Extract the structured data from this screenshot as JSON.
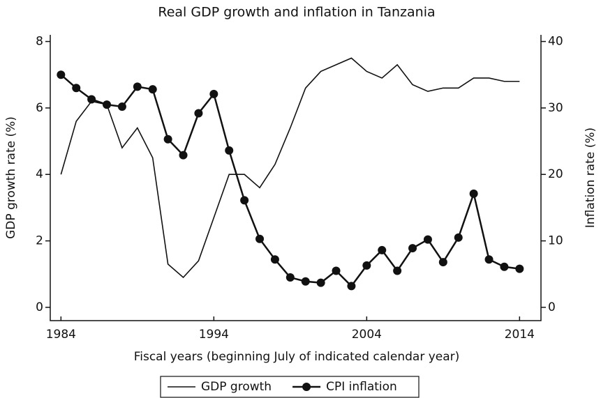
{
  "chart_data": {
    "type": "line",
    "title": "Real GDP growth and inflation in Tanzania",
    "x_label": "Fiscal years (beginning July of indicated calendar year)",
    "y_label": "GDP growth rate (%)",
    "y2_label": "Inflation rate (%)",
    "x": [
      1984,
      1985,
      1986,
      1987,
      1988,
      1989,
      1990,
      1991,
      1992,
      1993,
      1994,
      1995,
      1996,
      1997,
      1998,
      1999,
      2000,
      2001,
      2002,
      2003,
      2004,
      2005,
      2006,
      2007,
      2008,
      2009,
      2010,
      2011,
      2012,
      2013,
      2014
    ],
    "series": [
      {
        "name": "GDP growth",
        "color": "#111111",
        "markers": false,
        "values": [
          4.0,
          5.6,
          6.2,
          6.1,
          4.8,
          5.4,
          4.5,
          1.3,
          0.9,
          1.4,
          2.7,
          4.0,
          4.0,
          3.6,
          4.3,
          5.4,
          6.6,
          7.1,
          7.3,
          7.5,
          7.1,
          6.9,
          7.3,
          6.7,
          6.5,
          6.6,
          6.6,
          6.9,
          6.9,
          6.8,
          6.8
        ]
      },
      {
        "name": "CPI inflation",
        "color": "#111111",
        "markers": true,
        "axis": "y2",
        "values": [
          35.0,
          33.0,
          31.3,
          30.5,
          30.2,
          33.2,
          32.8,
          25.3,
          22.9,
          29.2,
          32.1,
          23.6,
          16.1,
          10.3,
          7.2,
          4.5,
          3.9,
          3.7,
          5.5,
          3.2,
          6.3,
          8.6,
          5.5,
          8.9,
          10.2,
          6.8,
          10.5,
          17.1,
          7.2,
          6.1,
          5.8
        ]
      }
    ],
    "xlim": [
      1983.3,
      2015.4
    ],
    "xticks": [
      1984,
      1994,
      2004,
      2014
    ],
    "ylim": [
      -0.4,
      8.2
    ],
    "yticks": [
      0,
      2,
      4,
      6,
      8
    ],
    "y2lim": [
      -2,
      41
    ],
    "y2ticks": [
      0,
      10,
      20,
      30,
      40
    ],
    "legend": "bottom"
  }
}
